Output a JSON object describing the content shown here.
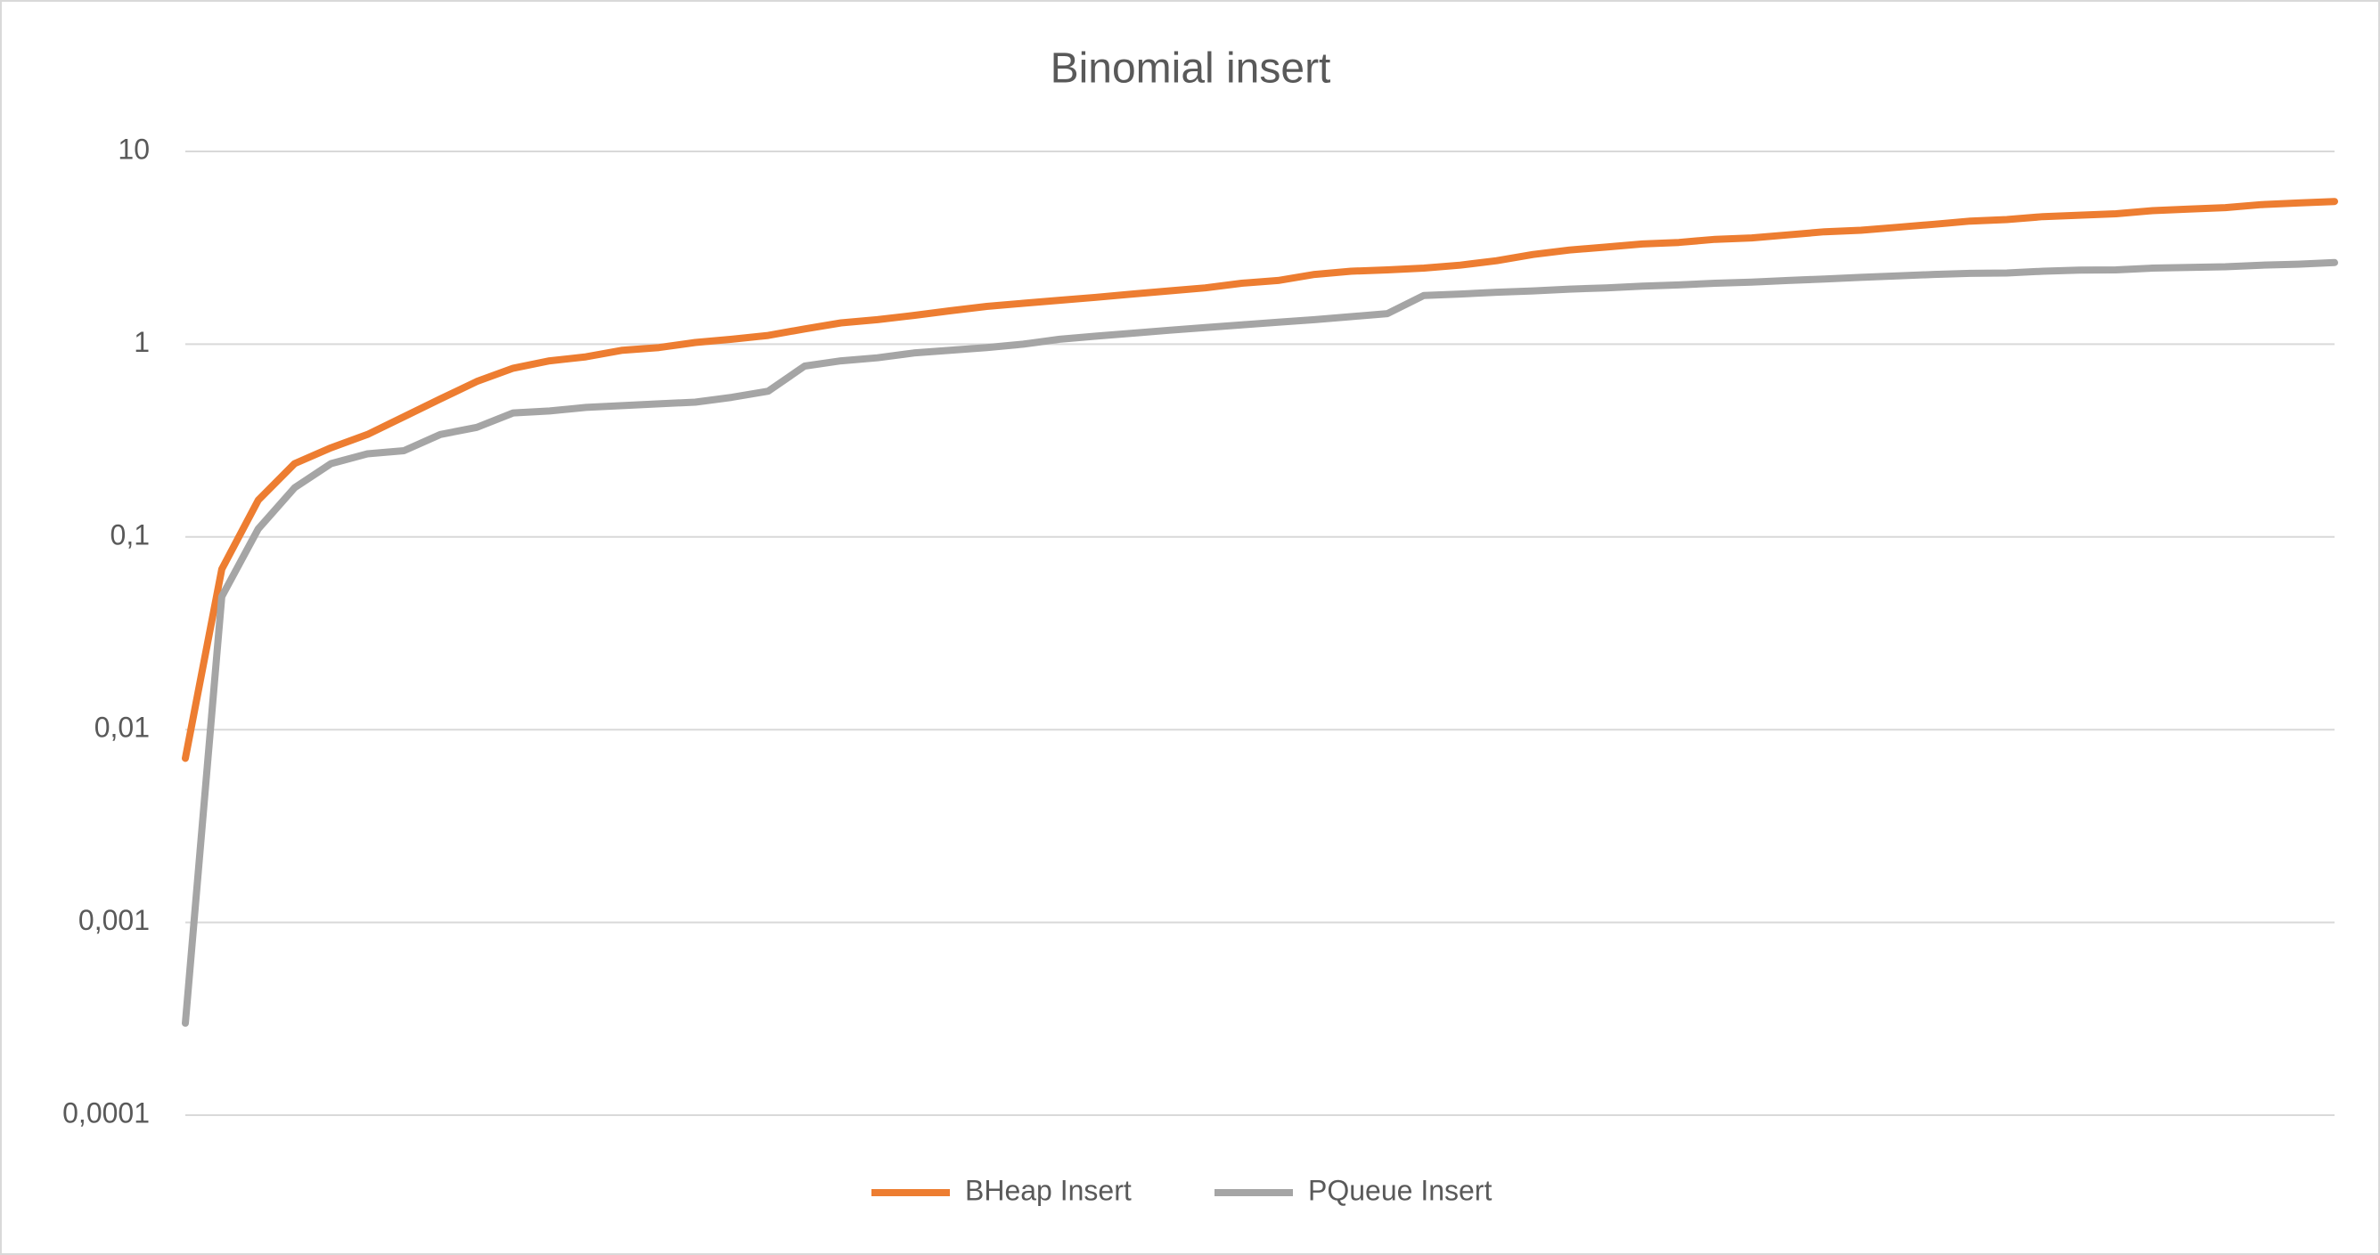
{
  "chart_data": {
    "type": "line",
    "title": "Binomial insert",
    "categories": [
      null,
      null,
      null,
      null,
      null,
      null,
      null,
      null,
      null,
      null,
      null,
      null,
      null,
      null,
      null,
      null,
      null,
      null,
      null,
      null,
      null,
      null,
      null,
      null,
      null,
      null,
      null,
      null,
      null,
      null,
      null,
      null,
      null,
      null,
      null,
      null,
      null,
      null,
      null,
      null,
      null,
      null,
      null,
      null,
      null,
      null,
      null,
      null,
      null,
      null,
      null,
      null,
      null,
      null,
      null,
      null,
      null,
      null,
      null,
      null
    ],
    "series": [
      {
        "name": "BHeap Insert",
        "color": "#ed7d31",
        "values": [
          0.0071,
          0.068,
          0.155,
          0.24,
          0.29,
          0.34,
          0.42,
          0.52,
          0.64,
          0.75,
          0.82,
          0.86,
          0.93,
          0.96,
          1.02,
          1.06,
          1.11,
          1.2,
          1.29,
          1.34,
          1.41,
          1.49,
          1.57,
          1.63,
          1.69,
          1.75,
          1.82,
          1.89,
          1.96,
          2.07,
          2.14,
          2.3,
          2.39,
          2.43,
          2.48,
          2.57,
          2.71,
          2.92,
          3.08,
          3.19,
          3.31,
          3.37,
          3.5,
          3.56,
          3.69,
          3.83,
          3.9,
          4.04,
          4.19,
          4.35,
          4.43,
          4.59,
          4.67,
          4.75,
          4.93,
          5.02,
          5.11,
          5.3,
          5.4,
          5.5
        ]
      },
      {
        "name": "PQueue Insert",
        "color": "#a5a5a5",
        "values": [
          0.0003,
          0.049,
          0.11,
          0.18,
          0.24,
          0.27,
          0.28,
          0.34,
          0.37,
          0.44,
          0.45,
          0.47,
          0.48,
          0.49,
          0.5,
          0.53,
          0.57,
          0.77,
          0.82,
          0.85,
          0.9,
          0.93,
          0.96,
          1.0,
          1.06,
          1.1,
          1.14,
          1.18,
          1.22,
          1.26,
          1.3,
          1.34,
          1.39,
          1.44,
          1.79,
          1.82,
          1.86,
          1.89,
          1.93,
          1.96,
          2.0,
          2.03,
          2.07,
          2.1,
          2.14,
          2.18,
          2.22,
          2.26,
          2.3,
          2.33,
          2.34,
          2.39,
          2.42,
          2.43,
          2.48,
          2.5,
          2.52,
          2.57,
          2.6,
          2.65
        ]
      }
    ],
    "ylim": [
      0.0001,
      10
    ],
    "yticks": [
      {
        "value": 0.0001,
        "label": "0,0001"
      },
      {
        "value": 0.001,
        "label": "0,001"
      },
      {
        "value": 0.01,
        "label": "0,01"
      },
      {
        "value": 0.1,
        "label": "0,1"
      },
      1,
      10
    ],
    "log_y": true,
    "grid": true,
    "legend": "bottom"
  }
}
